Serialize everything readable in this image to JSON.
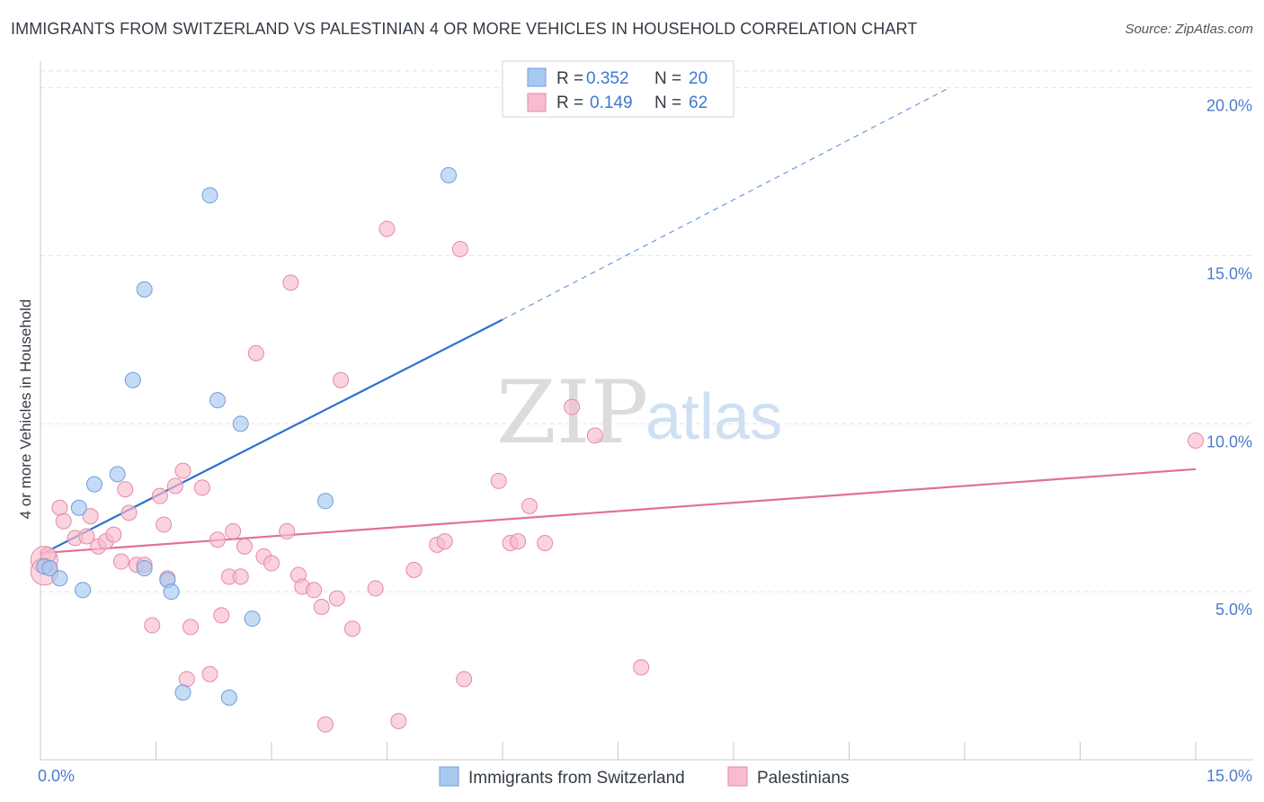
{
  "header": {
    "title": "IMMIGRANTS FROM SWITZERLAND VS PALESTINIAN 4 OR MORE VEHICLES IN HOUSEHOLD CORRELATION CHART",
    "source": "Source: ZipAtlas.com"
  },
  "watermark": {
    "zip": "ZIP",
    "atlas": "atlas"
  },
  "chart_data": {
    "type": "scatter",
    "title": "IMMIGRANTS FROM SWITZERLAND VS PALESTINIAN 4 OR MORE VEHICLES IN HOUSEHOLD CORRELATION CHART",
    "xlabel": "",
    "ylabel": "4 or more Vehicles in Household",
    "xlim": [
      0,
      15
    ],
    "ylim": [
      0,
      20.5
    ],
    "x_tick_labels": [
      {
        "value": 0,
        "label": "0.0%"
      },
      {
        "value": 15,
        "label": "15.0%"
      }
    ],
    "y_tick_labels": [
      {
        "value": 5,
        "label": "5.0%"
      },
      {
        "value": 10,
        "label": "10.0%"
      },
      {
        "value": 15,
        "label": "15.0%"
      },
      {
        "value": 20,
        "label": "20.0%"
      }
    ],
    "legend_position": "top-center",
    "series": [
      {
        "name": "Immigrants from Switzerland",
        "color": "#a8c8f0",
        "edge": "#6f9fdc",
        "line_color": "#2e6fd0",
        "R": "0.352",
        "N": "20",
        "trend": {
          "x0": 0,
          "y0": 6.1,
          "x1": 6.0,
          "y1": 13.1,
          "dash_to_x": 11.8,
          "dash_to_y": 20.0
        },
        "points": [
          [
            0.05,
            5.75
          ],
          [
            0.12,
            5.7
          ],
          [
            0.25,
            5.4
          ],
          [
            0.55,
            5.05
          ],
          [
            1.35,
            5.7
          ],
          [
            1.65,
            5.35
          ],
          [
            1.7,
            5.0
          ],
          [
            1.85,
            2.0
          ],
          [
            2.45,
            1.85
          ],
          [
            2.75,
            4.2
          ],
          [
            0.5,
            7.5
          ],
          [
            0.7,
            8.2
          ],
          [
            1.0,
            8.5
          ],
          [
            1.2,
            11.3
          ],
          [
            1.35,
            14.0
          ],
          [
            2.3,
            10.7
          ],
          [
            2.6,
            10.0
          ],
          [
            3.7,
            7.7
          ],
          [
            2.2,
            16.8
          ],
          [
            5.3,
            17.4
          ]
        ]
      },
      {
        "name": "Palestinians",
        "color": "#f7bccd",
        "edge": "#e58aa6",
        "line_color": "#e0709a",
        "R": "0.149",
        "N": "62",
        "trend": {
          "x0": 0,
          "y0": 6.15,
          "x1": 15.0,
          "y1": 8.65
        },
        "points": [
          [
            0.1,
            6.1
          ],
          [
            0.25,
            7.5
          ],
          [
            0.3,
            7.1
          ],
          [
            0.45,
            6.6
          ],
          [
            0.6,
            6.65
          ],
          [
            0.65,
            7.25
          ],
          [
            0.75,
            6.35
          ],
          [
            0.85,
            6.5
          ],
          [
            0.95,
            6.7
          ],
          [
            1.05,
            5.9
          ],
          [
            1.1,
            8.05
          ],
          [
            1.15,
            7.35
          ],
          [
            1.25,
            5.8
          ],
          [
            1.35,
            5.8
          ],
          [
            1.45,
            4.0
          ],
          [
            1.55,
            7.85
          ],
          [
            1.6,
            7.0
          ],
          [
            1.65,
            5.4
          ],
          [
            1.75,
            8.15
          ],
          [
            1.85,
            8.6
          ],
          [
            1.9,
            2.4
          ],
          [
            1.95,
            3.95
          ],
          [
            2.1,
            8.1
          ],
          [
            2.2,
            2.55
          ],
          [
            2.3,
            6.55
          ],
          [
            2.35,
            4.3
          ],
          [
            2.45,
            5.45
          ],
          [
            2.5,
            6.8
          ],
          [
            2.6,
            5.45
          ],
          [
            2.65,
            6.35
          ],
          [
            2.8,
            12.1
          ],
          [
            2.9,
            6.05
          ],
          [
            3.0,
            5.85
          ],
          [
            3.2,
            6.8
          ],
          [
            3.25,
            14.2
          ],
          [
            3.35,
            5.5
          ],
          [
            3.4,
            5.15
          ],
          [
            3.55,
            5.05
          ],
          [
            3.65,
            4.55
          ],
          [
            3.7,
            1.05
          ],
          [
            3.85,
            4.8
          ],
          [
            3.9,
            11.3
          ],
          [
            4.05,
            3.9
          ],
          [
            4.35,
            5.1
          ],
          [
            4.5,
            15.8
          ],
          [
            4.65,
            1.15
          ],
          [
            4.85,
            5.65
          ],
          [
            5.15,
            6.4
          ],
          [
            5.25,
            6.5
          ],
          [
            5.45,
            15.2
          ],
          [
            5.5,
            2.4
          ],
          [
            5.95,
            8.3
          ],
          [
            6.1,
            6.45
          ],
          [
            6.2,
            6.5
          ],
          [
            6.35,
            7.55
          ],
          [
            6.55,
            6.45
          ],
          [
            6.9,
            10.5
          ],
          [
            7.2,
            9.65
          ],
          [
            7.8,
            2.75
          ],
          [
            15.0,
            9.5
          ]
        ],
        "large_points": [
          [
            0.05,
            5.95
          ],
          [
            0.05,
            5.6
          ]
        ]
      }
    ]
  },
  "legend": {
    "rows": [
      {
        "r_label": "R = ",
        "r_value": "0.352",
        "n_label": "N = ",
        "n_value": "20"
      },
      {
        "r_label": "R = ",
        "r_value": "0.149",
        "n_label": "N = ",
        "n_value": "62"
      }
    ],
    "bottom": [
      "Immigrants from Switzerland",
      "Palestinians"
    ]
  }
}
